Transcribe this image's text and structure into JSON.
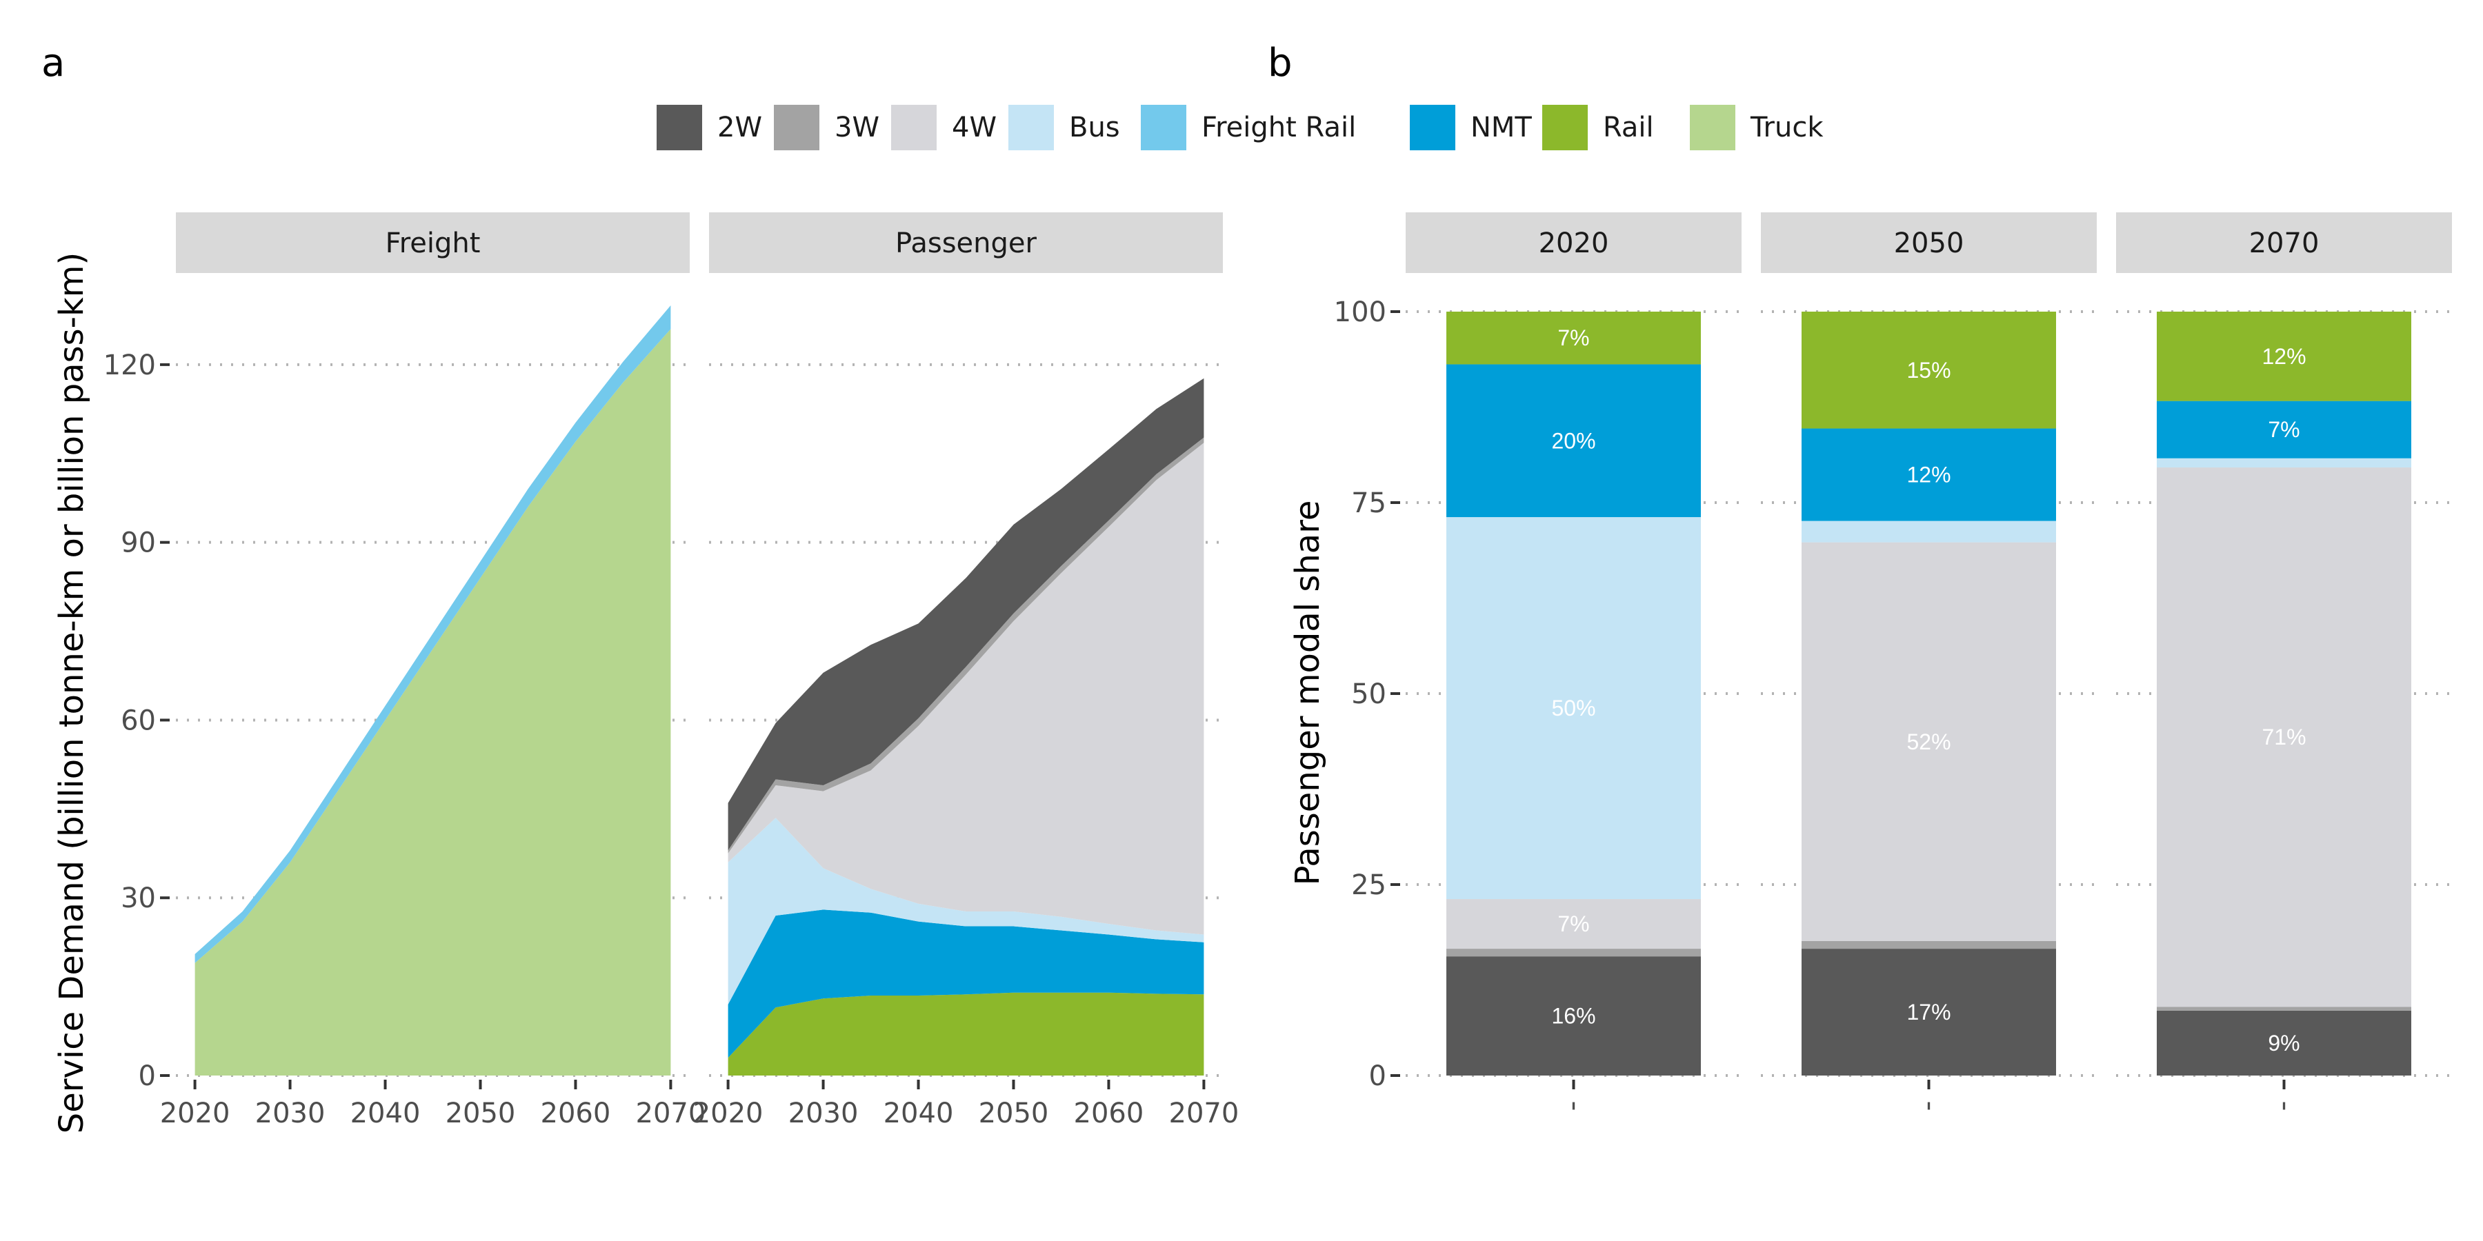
{
  "colors": {
    "2W": "#595959",
    "3W": "#a3a3a3",
    "4W": "#d6d6da",
    "Bus": "#c4e4f5",
    "Freight Rail": "#73c9ec",
    "NMT": "#009ed8",
    "Rail": "#8cb82b",
    "Truck": "#b5d68e"
  },
  "legend": {
    "items": [
      "2W",
      "3W",
      "4W",
      "Bus",
      "Freight Rail",
      "NMT",
      "Rail",
      "Truck"
    ]
  },
  "chart_data": [
    {
      "tag": "a",
      "type": "area",
      "stacked": true,
      "ylabel": "Service Demand (billion tonne-km or billion pass-km)",
      "ylim": [
        0,
        135
      ],
      "yticks": [
        0,
        30,
        60,
        90,
        120
      ],
      "xlim": [
        2018,
        2072
      ],
      "xticks": [
        2020,
        2030,
        2040,
        2050,
        2060,
        2070
      ],
      "grid": "horizontal-dotted",
      "facets": [
        {
          "label": "Freight",
          "x": [
            2020,
            2025,
            2030,
            2035,
            2040,
            2045,
            2050,
            2055,
            2060,
            2065,
            2070
          ],
          "series": [
            {
              "name": "Truck",
              "values": [
                19,
                26,
                36,
                48,
                60,
                72,
                84,
                96,
                107,
                117,
                126
              ]
            },
            {
              "name": "Freight Rail",
              "values": [
                1.5,
                1.7,
                2,
                2.2,
                2.4,
                2.6,
                2.8,
                3,
                3.2,
                3.5,
                4
              ]
            }
          ]
        },
        {
          "label": "Passenger",
          "x": [
            2020,
            2025,
            2030,
            2035,
            2040,
            2045,
            2050,
            2055,
            2060,
            2065,
            2070
          ],
          "series": [
            {
              "name": "Rail",
              "values": [
                3,
                11.5,
                13,
                13.5,
                13.5,
                13.7,
                14,
                14,
                14,
                13.8,
                13.7
              ]
            },
            {
              "name": "NMT",
              "values": [
                9,
                15.5,
                15,
                14,
                12.5,
                11.5,
                11.2,
                10.5,
                9.8,
                9.2,
                8.8
              ]
            },
            {
              "name": "Bus",
              "values": [
                24,
                16.5,
                7,
                4,
                3,
                2.5,
                2.5,
                2.3,
                1.8,
                1.5,
                1.3
              ]
            },
            {
              "name": "4W",
              "values": [
                1.5,
                5.5,
                13,
                20,
                30,
                40,
                49,
                58,
                67,
                76,
                83
              ]
            },
            {
              "name": "3W",
              "values": [
                0.5,
                1,
                1,
                1.2,
                1.3,
                1.3,
                1.3,
                1.2,
                1.1,
                1,
                0.9
              ]
            },
            {
              "name": "2W",
              "values": [
                8,
                9.5,
                19,
                20,
                16,
                15,
                15,
                13,
                12,
                11,
                10
              ]
            }
          ]
        }
      ]
    },
    {
      "tag": "b",
      "type": "bar",
      "stacked": true,
      "ylabel": "Passenger modal share",
      "ylim": [
        0,
        100
      ],
      "yticks": [
        0,
        25,
        50,
        75,
        100
      ],
      "grid": "horizontal-dotted",
      "stack_order": [
        "2W",
        "3W",
        "4W",
        "Bus",
        "NMT",
        "Rail"
      ],
      "facets": [
        {
          "label": "2020",
          "x_tick": "'",
          "values": {
            "2W": 15.6,
            "3W": 1,
            "4W": 6.5,
            "Bus": 50,
            "NMT": 20,
            "Rail": 6.9
          },
          "labels": {
            "2W": "16%",
            "4W": "7%",
            "Bus": "50%",
            "NMT": "20%",
            "Rail": "7%"
          }
        },
        {
          "label": "2050",
          "x_tick": "'",
          "values": {
            "2W": 16.6,
            "3W": 1,
            "4W": 52.2,
            "Bus": 2.8,
            "NMT": 12.1,
            "Rail": 15.3
          },
          "labels": {
            "2W": "17%",
            "4W": "52%",
            "NMT": "12%",
            "Rail": "15%"
          }
        },
        {
          "label": "2070",
          "x_tick": "'",
          "values": {
            "2W": 8.5,
            "3W": 0.5,
            "4W": 70.6,
            "Bus": 1.2,
            "NMT": 7.5,
            "Rail": 11.7
          },
          "labels": {
            "2W": "9%",
            "4W": "71%",
            "NMT": "7%",
            "Rail": "12%"
          }
        }
      ]
    }
  ]
}
